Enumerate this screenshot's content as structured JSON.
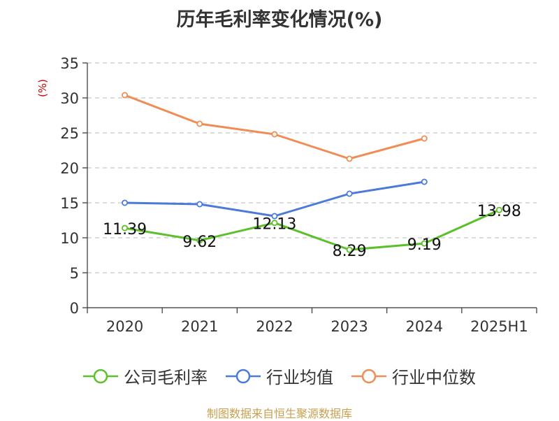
{
  "chart_data": {
    "type": "line",
    "title": "历年毛利率变化情况(%)",
    "ylabel": "(%)",
    "categories": [
      "2020",
      "2021",
      "2022",
      "2023",
      "2024",
      "2025H1"
    ],
    "ylim": [
      0,
      35
    ],
    "yticks": [
      "0",
      "5",
      "10",
      "15",
      "20",
      "25",
      "30",
      "35"
    ],
    "grid": true,
    "legend_position": "bottom",
    "series": [
      {
        "name": "公司毛利率",
        "color": "#5cc02a",
        "values": [
          11.39,
          9.62,
          12.13,
          8.29,
          9.19,
          13.98
        ],
        "labels": [
          "11.39",
          "9.62",
          "12.13",
          "8.29",
          "9.19",
          "13.98"
        ]
      },
      {
        "name": "行业均值",
        "color": "#4b7bd9",
        "values": [
          15.0,
          14.8,
          13.1,
          16.3,
          18.0,
          null
        ]
      },
      {
        "name": "行业中位数",
        "color": "#f08c55",
        "values": [
          30.4,
          26.3,
          24.8,
          21.3,
          24.2,
          null
        ]
      }
    ]
  },
  "source_note": "制图数据来自恒生聚源数据库"
}
